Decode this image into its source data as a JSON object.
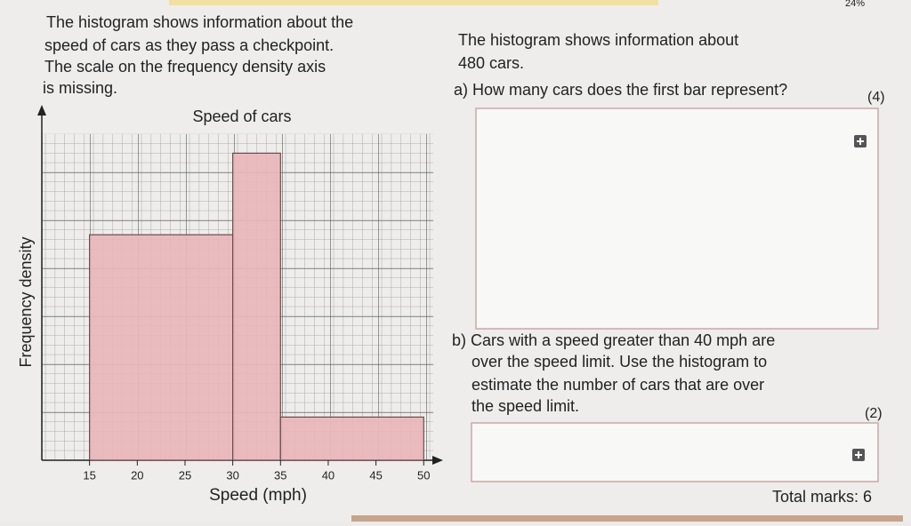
{
  "header": {
    "progress": "24%"
  },
  "intro": {
    "lines": [
      "The histogram shows information about the",
      "speed of cars as they pass a checkpoint.",
      "The scale on the frequency density axis",
      "is missing."
    ]
  },
  "chart_data": {
    "type": "histogram",
    "title": "Speed of cars",
    "x_label": "Speed (mph)",
    "y_label": "Frequency density",
    "bins": [
      15,
      30,
      35,
      50
    ],
    "values": [
      23.5,
      32,
      4.5
    ],
    "color": "#e8b6bb",
    "xlim": [
      10,
      51
    ],
    "xticks": [
      15,
      20,
      25,
      30,
      35,
      40,
      45,
      50
    ],
    "ylim": [
      0,
      34
    ],
    "grid": true
  },
  "question": {
    "intro_lines": [
      "The histogram shows information about",
      "480 cars."
    ],
    "part_a": {
      "text": "a) How many cars does the first bar represent?",
      "marks": "(4)"
    },
    "part_b": {
      "lines": [
        "b) Cars with a speed greater than 40 mph are",
        "over the speed limit. Use the histogram to",
        "estimate the number of cars that are over",
        "the speed limit."
      ],
      "marks": "(2)"
    }
  },
  "footer": {
    "total": "Total marks: 6"
  }
}
